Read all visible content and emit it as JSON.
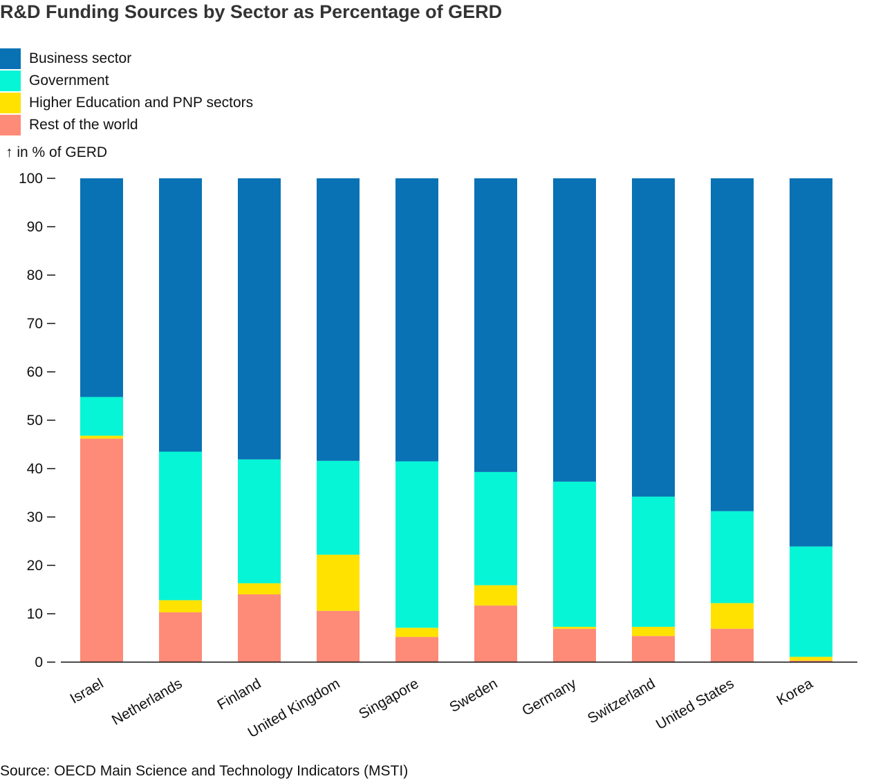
{
  "chart_data": {
    "type": "bar",
    "stacked": true,
    "title": "R&D Funding Sources by Sector as Percentage of GERD",
    "ylabel": "in % of GERD",
    "ylim": [
      0,
      100
    ],
    "yticks": [
      0,
      10,
      20,
      30,
      40,
      50,
      60,
      70,
      80,
      90,
      100
    ],
    "grid": false,
    "legend_position": "top-left",
    "categories": [
      "Israel",
      "Netherlands",
      "Finland",
      "United Kingdom",
      "Singapore",
      "Sweden",
      "Germany",
      "Switzerland",
      "United States",
      "Korea"
    ],
    "series": [
      {
        "name": "Rest of the world",
        "color": "#fe8a78",
        "values": [
          46.2,
          10.3,
          14.0,
          10.6,
          5.2,
          11.7,
          6.9,
          5.4,
          6.9,
          0.3
        ]
      },
      {
        "name": "Higher Education and PNP sectors",
        "color": "#ffe200",
        "values": [
          0.6,
          2.5,
          2.3,
          11.6,
          1.9,
          4.2,
          0.4,
          1.9,
          5.3,
          0.8
        ]
      },
      {
        "name": "Government",
        "color": "#06f5d6",
        "values": [
          8.0,
          30.7,
          25.6,
          19.4,
          34.4,
          23.4,
          30.0,
          26.9,
          19.0,
          22.8
        ]
      },
      {
        "name": "Business sector",
        "color": "#0872b4",
        "values": [
          45.2,
          56.5,
          58.1,
          58.4,
          58.5,
          60.7,
          62.7,
          65.8,
          68.8,
          76.1
        ]
      }
    ],
    "legend_order": [
      "Business sector",
      "Government",
      "Higher Education and PNP sectors",
      "Rest of the world"
    ],
    "source": "Source: OECD Main Science and Technology Indicators (MSTI)"
  }
}
